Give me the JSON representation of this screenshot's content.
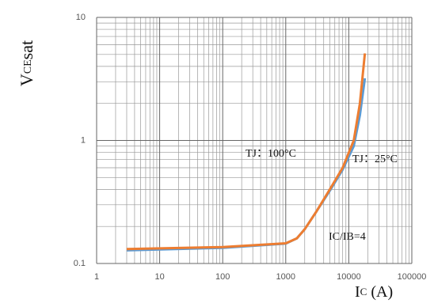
{
  "chart_data": {
    "type": "line",
    "y_label": [
      "V",
      "CE",
      "sat"
    ],
    "x_label": [
      "I",
      "C",
      " (A)"
    ],
    "annotation": "IC/IB=4",
    "xlog": true,
    "ylog": true,
    "grid": true,
    "xlim": [
      1,
      100000
    ],
    "ylim": [
      0.1,
      10
    ],
    "xticks": [
      1,
      10,
      100,
      1000,
      10000,
      100000
    ],
    "yticks": [
      0.1,
      1,
      10
    ],
    "series": [
      {
        "name": "TJ：100°C",
        "color": "#5b9bd5",
        "x": [
          3,
          100,
          1000,
          1500,
          2000,
          3000,
          5000,
          8000,
          12000,
          15000,
          18000
        ],
        "values": [
          0.128,
          0.134,
          0.145,
          0.16,
          0.19,
          0.26,
          0.39,
          0.58,
          0.9,
          1.6,
          3.2
        ]
      },
      {
        "name": "TJ：25°C",
        "color": "#ed7d31",
        "x": [
          3,
          100,
          1000,
          1500,
          2000,
          3000,
          5000,
          8000,
          12000,
          15000,
          18000
        ],
        "values": [
          0.131,
          0.136,
          0.146,
          0.16,
          0.19,
          0.26,
          0.4,
          0.6,
          1.0,
          2.0,
          5.1
        ]
      }
    ]
  }
}
